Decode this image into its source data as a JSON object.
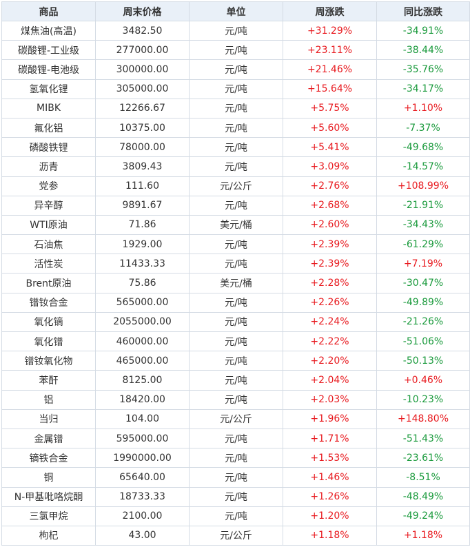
{
  "table": {
    "headers": [
      "商品",
      "周末价格",
      "单位",
      "周涨跌",
      "同比涨跌"
    ],
    "rows": [
      [
        "煤焦油(高温)",
        "3482.50",
        "元/吨",
        "+31.29%",
        "-34.91%"
      ],
      [
        "碳酸锂-工业级",
        "277000.00",
        "元/吨",
        "+23.11%",
        "-38.44%"
      ],
      [
        "碳酸锂-电池级",
        "300000.00",
        "元/吨",
        "+21.46%",
        "-35.76%"
      ],
      [
        "氢氧化锂",
        "305000.00",
        "元/吨",
        "+15.64%",
        "-34.17%"
      ],
      [
        "MIBK",
        "12266.67",
        "元/吨",
        "+5.75%",
        "+1.10%"
      ],
      [
        "氟化铝",
        "10375.00",
        "元/吨",
        "+5.60%",
        "-7.37%"
      ],
      [
        "磷酸铁锂",
        "78000.00",
        "元/吨",
        "+5.41%",
        "-49.68%"
      ],
      [
        "沥青",
        "3809.43",
        "元/吨",
        "+3.09%",
        "-14.57%"
      ],
      [
        "党参",
        "111.60",
        "元/公斤",
        "+2.76%",
        "+108.99%"
      ],
      [
        "异辛醇",
        "9891.67",
        "元/吨",
        "+2.68%",
        "-21.91%"
      ],
      [
        "WTI原油",
        "71.86",
        "美元/桶",
        "+2.60%",
        "-34.43%"
      ],
      [
        "石油焦",
        "1929.00",
        "元/吨",
        "+2.39%",
        "-61.29%"
      ],
      [
        "活性炭",
        "11433.33",
        "元/吨",
        "+2.39%",
        "+7.19%"
      ],
      [
        "Brent原油",
        "75.86",
        "美元/桶",
        "+2.28%",
        "-30.47%"
      ],
      [
        "镨钕合金",
        "565000.00",
        "元/吨",
        "+2.26%",
        "-49.89%"
      ],
      [
        "氧化镝",
        "2055000.00",
        "元/吨",
        "+2.24%",
        "-21.26%"
      ],
      [
        "氧化镨",
        "460000.00",
        "元/吨",
        "+2.22%",
        "-51.06%"
      ],
      [
        "镨钕氧化物",
        "465000.00",
        "元/吨",
        "+2.20%",
        "-50.13%"
      ],
      [
        "苯酐",
        "8125.00",
        "元/吨",
        "+2.04%",
        "+0.46%"
      ],
      [
        "铝",
        "18420.00",
        "元/吨",
        "+2.03%",
        "-10.23%"
      ],
      [
        "当归",
        "104.00",
        "元/公斤",
        "+1.96%",
        "+148.80%"
      ],
      [
        "金属镨",
        "595000.00",
        "元/吨",
        "+1.71%",
        "-51.43%"
      ],
      [
        "镝铁合金",
        "1990000.00",
        "元/吨",
        "+1.53%",
        "-23.61%"
      ],
      [
        "铜",
        "65640.00",
        "元/吨",
        "+1.46%",
        "-8.51%"
      ],
      [
        "N-甲基吡咯烷酮",
        "18733.33",
        "元/吨",
        "+1.26%",
        "-48.49%"
      ],
      [
        "三氯甲烷",
        "2100.00",
        "元/吨",
        "+1.20%",
        "-49.24%"
      ],
      [
        "枸杞",
        "43.00",
        "元/公斤",
        "+1.18%",
        "+1.18%"
      ]
    ]
  },
  "colors": {
    "up": "#e8191e",
    "down": "#1a9a3c",
    "header_bg": "#e9f0f8",
    "border": "#d4dbe4"
  }
}
